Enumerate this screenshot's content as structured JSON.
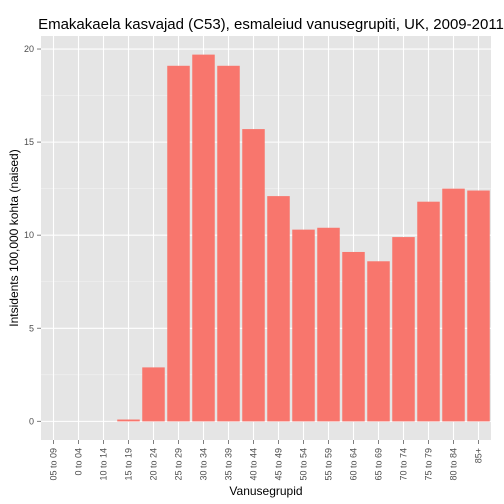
{
  "chart_data": {
    "type": "bar",
    "title": "Emakakaela kasvajad (C53), esmaleiud vanusegrupiti, UK, 2009-2011",
    "xlabel": "Vanusegrupid",
    "ylabel": "Intsidents 100,000 kohta (naised)",
    "categories": [
      "05 to 09",
      "0 to 04",
      "10 to 14",
      "15 to 19",
      "20 to 24",
      "25 to 29",
      "30 to 34",
      "35 to 39",
      "40 to 44",
      "45 to 49",
      "50 to 54",
      "55 to 59",
      "60 to 64",
      "65 to 69",
      "70 to 74",
      "75 to 79",
      "80 to 84",
      "85+"
    ],
    "values": [
      0,
      0,
      0,
      0.1,
      2.9,
      19.1,
      19.7,
      19.1,
      15.7,
      12.1,
      10.3,
      10.4,
      9.1,
      8.6,
      9.9,
      11.8,
      12.5,
      12.4
    ],
    "yticks": [
      0,
      5,
      10,
      15,
      20
    ],
    "ylim": [
      -1.0,
      20.7
    ],
    "grid": true,
    "legend": "none",
    "colors": {
      "bar": "#F8766D",
      "panel": "#E5E5E5",
      "grid_major": "#FFFFFF",
      "grid_minor": "#F2F2F2"
    }
  }
}
